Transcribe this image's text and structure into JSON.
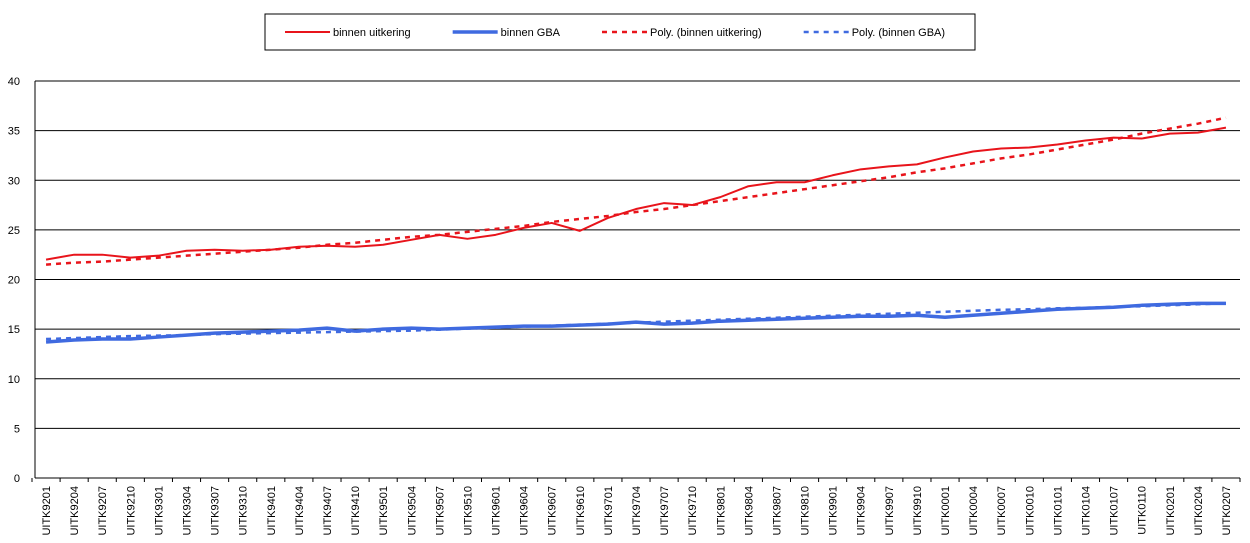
{
  "chart_data": {
    "type": "line",
    "categories": [
      "UITK9201",
      "UITK9204",
      "UITK9207",
      "UITK9210",
      "UITK9301",
      "UITK9304",
      "UITK9307",
      "UITK9310",
      "UITK9401",
      "UITK9404",
      "UITK9407",
      "UITK9410",
      "UITK9501",
      "UITK9504",
      "UITK9507",
      "UITK9510",
      "UITK9601",
      "UITK9604",
      "UITK9607",
      "UITK9610",
      "UITK9701",
      "UITK9704",
      "UITK9707",
      "UITK9710",
      "UITK9801",
      "UITK9804",
      "UITK9807",
      "UITK9810",
      "UITK9901",
      "UITK9904",
      "UITK9907",
      "UITK9910",
      "UITK0001",
      "UITK0004",
      "UITK0007",
      "UITK0010",
      "UITK0101",
      "UITK0104",
      "UITK0107",
      "UITK0110",
      "UITK0201",
      "UITK0204",
      "UITK0207"
    ],
    "series": [
      {
        "name": "binnen uitkering",
        "color": "#e8141b",
        "dashed": false,
        "values": [
          22.0,
          22.5,
          22.5,
          22.2,
          22.4,
          22.9,
          23.0,
          22.9,
          23.0,
          23.3,
          23.4,
          23.3,
          23.5,
          24.0,
          24.5,
          24.1,
          24.5,
          25.2,
          25.7,
          24.9,
          26.2,
          27.1,
          27.7,
          27.5,
          28.3,
          29.4,
          29.8,
          29.8,
          30.5,
          31.1,
          31.4,
          31.6,
          32.3,
          32.9,
          33.2,
          33.3,
          33.6,
          34.0,
          34.3,
          34.2,
          34.7,
          34.8,
          35.3
        ]
      },
      {
        "name": "binnen GBA",
        "color": "#3f6ae0",
        "dashed": false,
        "values": [
          13.7,
          13.9,
          14.0,
          14.0,
          14.2,
          14.4,
          14.6,
          14.7,
          14.8,
          14.9,
          15.1,
          14.8,
          15.0,
          15.1,
          15.0,
          15.1,
          15.2,
          15.3,
          15.3,
          15.4,
          15.5,
          15.7,
          15.5,
          15.6,
          15.8,
          15.9,
          16.0,
          16.1,
          16.2,
          16.3,
          16.3,
          16.4,
          16.2,
          16.4,
          16.6,
          16.8,
          17.0,
          17.1,
          17.2,
          17.4,
          17.5,
          17.6,
          17.6
        ]
      },
      {
        "name": "Poly. (binnen uitkering)",
        "color": "#e8141b",
        "dashed": true,
        "values": [
          21.5,
          21.7,
          21.8,
          22.0,
          22.2,
          22.4,
          22.6,
          22.8,
          23.0,
          23.2,
          23.5,
          23.7,
          24.0,
          24.3,
          24.5,
          24.8,
          25.1,
          25.4,
          25.8,
          26.1,
          26.4,
          26.8,
          27.1,
          27.5,
          27.9,
          28.3,
          28.7,
          29.1,
          29.5,
          29.9,
          30.3,
          30.8,
          31.2,
          31.7,
          32.2,
          32.6,
          33.1,
          33.6,
          34.1,
          34.7,
          35.2,
          35.7,
          36.3
        ]
      },
      {
        "name": "Poly. (binnen GBA)",
        "color": "#3f6ae0",
        "dashed": true,
        "values": [
          14.0,
          14.1,
          14.2,
          14.3,
          14.35,
          14.4,
          14.5,
          14.55,
          14.6,
          14.65,
          14.7,
          14.75,
          14.8,
          14.85,
          14.95,
          15.05,
          15.15,
          15.25,
          15.35,
          15.45,
          15.55,
          15.65,
          15.75,
          15.85,
          15.95,
          16.05,
          16.15,
          16.25,
          16.35,
          16.45,
          16.55,
          16.65,
          16.75,
          16.85,
          16.95,
          17.0,
          17.1,
          17.15,
          17.25,
          17.3,
          17.4,
          17.5,
          17.6
        ]
      }
    ],
    "ylim": [
      0,
      40
    ],
    "yticks": [
      0,
      5,
      10,
      15,
      20,
      25,
      30,
      35,
      40
    ],
    "grid": true,
    "legend": "top"
  }
}
